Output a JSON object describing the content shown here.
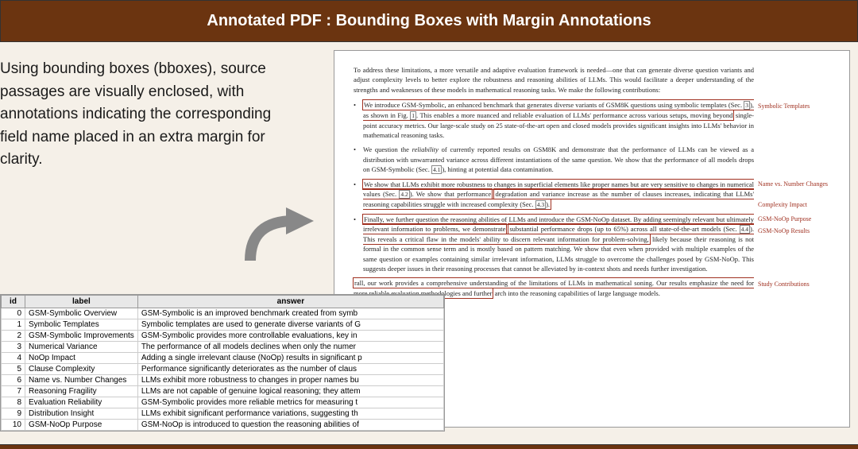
{
  "header": {
    "title": "Annotated PDF : Bounding Boxes with Margin Annotations"
  },
  "description": "Using bounding boxes (bboxes), source passages are visually enclosed, with annotations indicating the corresponding field name placed in an extra margin for clarity.",
  "colors": {
    "header_bg": "#6b3410",
    "bbox_border": "#a03020",
    "page_bg": "#f5f0e8",
    "margin_text": "#a03020"
  },
  "table": {
    "columns": [
      "id",
      "label",
      "answer"
    ],
    "rows": [
      [
        "0",
        "GSM-Symbolic Overview",
        "GSM-Symbolic is an improved benchmark created from symb"
      ],
      [
        "1",
        "Symbolic Templates",
        "Symbolic templates are used to generate diverse variants of G"
      ],
      [
        "2",
        "GSM-Symbolic Improvements",
        "GSM-Symbolic provides more controllable evaluations, key in"
      ],
      [
        "3",
        "Numerical Variance",
        "The performance of all models declines when only the numer"
      ],
      [
        "4",
        "NoOp Impact",
        "Adding a single irrelevant clause (NoOp) results in significant p"
      ],
      [
        "5",
        "Clause Complexity",
        "Performance significantly deteriorates as the number of claus"
      ],
      [
        "6",
        "Name vs. Number Changes",
        "LLMs exhibit more robustness to changes in proper names bu"
      ],
      [
        "7",
        "Reasoning Fragility",
        "LLMs are not capable of genuine logical reasoning; they attem"
      ],
      [
        "8",
        "Evaluation Reliability",
        "GSM-Symbolic provides more reliable metrics for measuring t"
      ],
      [
        "9",
        "Distribution Insight",
        "LLMs exhibit significant performance variations, suggesting th"
      ],
      [
        "10",
        "GSM-NoOp Purpose",
        "GSM-NoOp is introduced to question the reasoning abilities of"
      ]
    ]
  },
  "pdf": {
    "intro": "To address these limitations, a more versatile and adaptive evaluation framework is needed—one that can generate diverse question variants and adjust complexity levels to better explore the robustness and reasoning abilities of LLMs. This would facilitate a deeper understanding of the strengths and weaknesses of these models in mathematical reasoning tasks. We make the following contributions:",
    "b1a": "We introduce GSM-Symbolic, an enhanced benchmark that generates diverse variants of GSM8K questions using symbolic templates (Sec. ",
    "b1b": "), as shown in Fig. ",
    "b1c": ". This enables a more nuanced and reliable evaluation of LLMs' performance across various setups, moving beyond",
    "b1d": " single-point accuracy metrics. Our large-scale study on 25 state-of-the-art open and closed models provides significant insights into LLMs' behavior in mathematical reasoning tasks.",
    "b2a": "We question the ",
    "b2b": "reliability",
    "b2c": " of currently reported results on GSM8K and demonstrate that the performance of LLMs can be viewed as a distribution with unwarranted variance across different instantiations of the same question. We show that the performance of all models drops on GSM-Symbolic (Sec. ",
    "b2d": "), hinting at potential data contamination.",
    "b3a": "We show that LLMs exhibit more robustness to changes in superficial elements like proper names but are very sensitive to changes in numerical values (Sec. ",
    "b3b": "). We show that performance",
    "b3c": "degradation and variance increase as the number of clauses increases, indicating that LLMs' reasoning capabilities struggle with increased complexity (Sec. ",
    "b3d": ").",
    "b4a": "Finally, we further question the reasoning abilities of LLMs and introduce the GSM-NoOp dataset. By adding seemingly relevant but ultimately irrelevant information to problems, we demonstrate",
    "b4b": "substantial performance drops (up to 65%) across all state-of-the-art models (Sec. ",
    "b4c": "). This reveals a critical flaw in the models' ability to discern relevant information for problem-solving,",
    "b4d": " likely because their reasoning is not formal in the common sense term and is mostly based on pattern matching. We show that even when provided with multiple examples of the same question or examples containing similar irrelevant information, LLMs struggle to overcome the challenges posed by GSM-NoOp. This suggests deeper issues in their reasoning processes that cannot be alleviated by in-context shots and needs further investigation.",
    "concl": "rall, our work provides a comprehensive understanding of the limitations of LLMs in mathematical soning. Our results emphasize the need for more reliable evaluation methodologies and further",
    "concl2": "arch into the reasoning capabilities of large language models.",
    "refs": {
      "r3": "3",
      "r1": "1",
      "r41": "4.1",
      "r42": "4.2",
      "r43": "4.3",
      "r44": "4.4"
    },
    "margins": {
      "m1": "Symbolic Templates",
      "m2": "Name vs. Number Changes",
      "m3": "Complexity Impact",
      "m4": "GSM-NoOp Purpose",
      "m5": "GSM-NoOp Results",
      "m6": "Study Contributions"
    }
  }
}
